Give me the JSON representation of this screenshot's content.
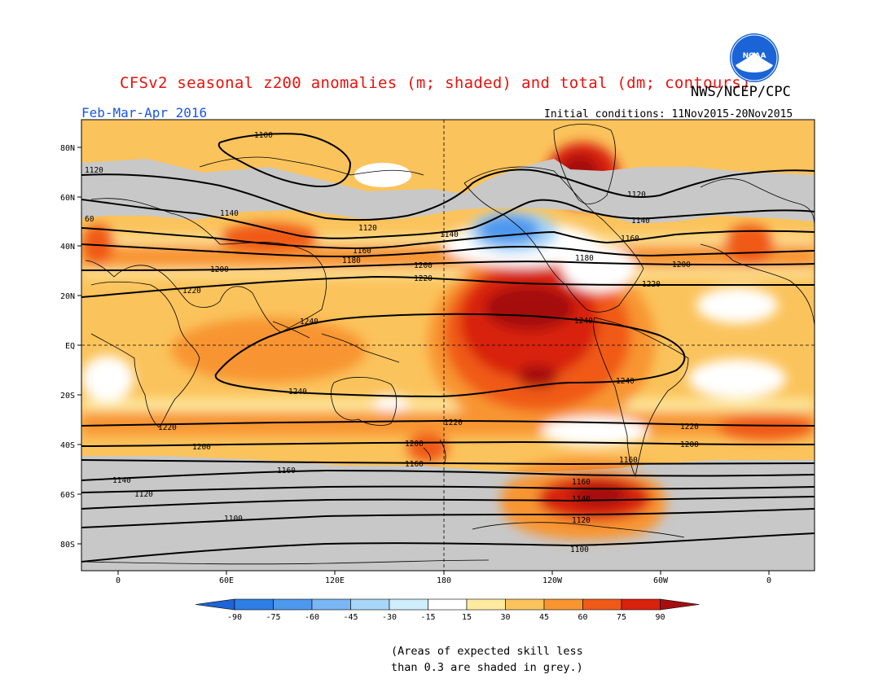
{
  "header": {
    "title": "CFSv2 seasonal z200 anomalies (m; shaded) and total (dm; contours)",
    "agency": "NWS/NCEP/CPC",
    "season": "Feb-Mar-Apr 2016",
    "initial_conditions": "Initial conditions: 11Nov2015-20Nov2015",
    "logo_text": "NOAA"
  },
  "axes": {
    "lat_labels": [
      "80N",
      "60N",
      "40N",
      "20N",
      "EQ",
      "20S",
      "40S",
      "60S",
      "80S"
    ],
    "lon_labels": [
      "0",
      "60E",
      "120E",
      "180",
      "120W",
      "60W",
      "0"
    ]
  },
  "colorbar": {
    "levels": [
      "-90",
      "-75",
      "-60",
      "-45",
      "-30",
      "-15",
      "15",
      "30",
      "45",
      "60",
      "75",
      "90"
    ],
    "colors": [
      "#1e64d6",
      "#2f7ee6",
      "#4e98ee",
      "#78b6f4",
      "#a8d6f8",
      "#cdeefa",
      "#ffffff",
      "#fdeaa0",
      "#fbc35c",
      "#f89530",
      "#f05a18",
      "#d8220e",
      "#a50f0f"
    ],
    "skill_mask_color": "#c8c8c8"
  },
  "contour_labels": [
    "1100",
    "1120",
    "1140",
    "1160",
    "1180",
    "1200",
    "1220",
    "1240",
    "60"
  ],
  "footnote": {
    "line1": "(Areas of expected skill less",
    "line2": "than 0.3 are shaded in grey.)"
  }
}
